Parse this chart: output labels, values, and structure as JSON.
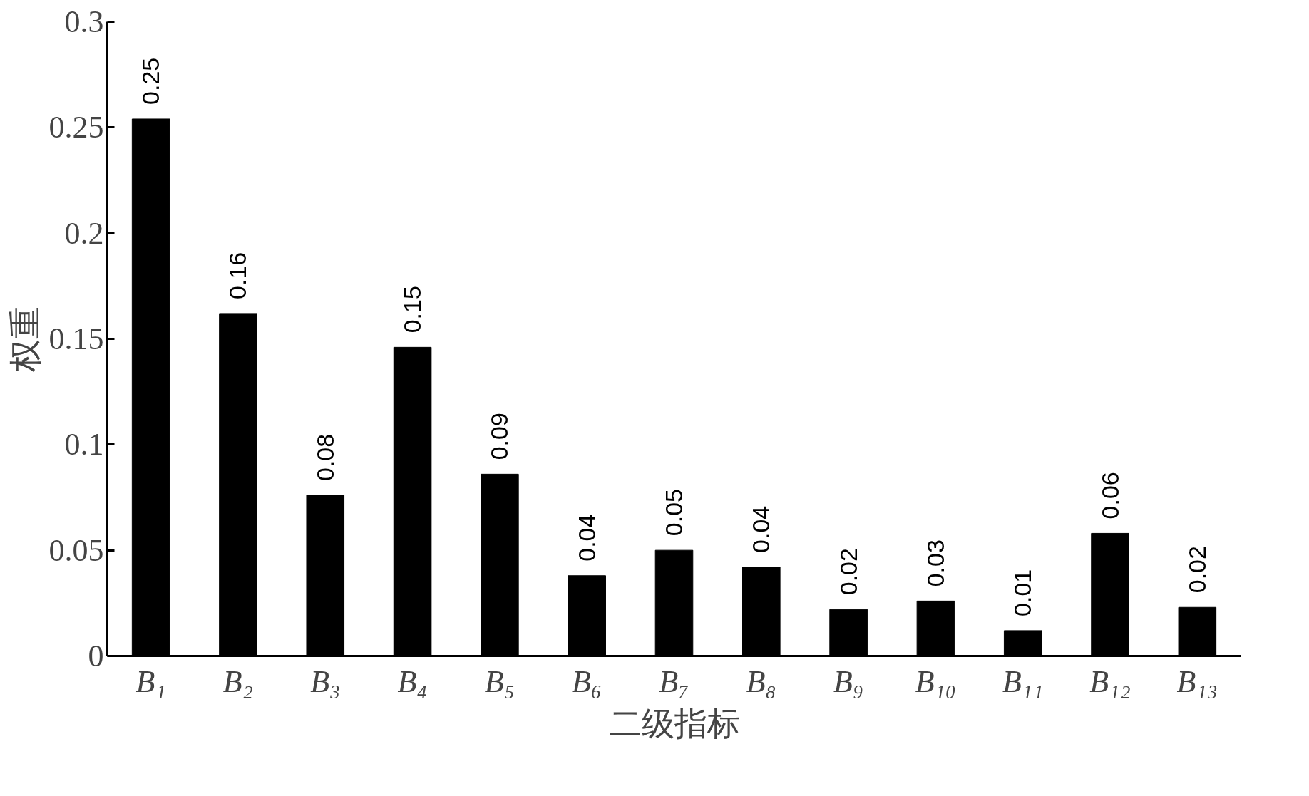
{
  "chart_data": {
    "type": "bar",
    "xlabel": "二级指标",
    "ylabel": "权重",
    "categories": [
      "B₁",
      "B₂",
      "B₃",
      "B₄",
      "B₅",
      "B₆",
      "B₇",
      "B₈",
      "B₉",
      "B₁₀",
      "B₁₁",
      "B₁₂",
      "B₁₃"
    ],
    "values": [
      0.254,
      0.162,
      0.076,
      0.146,
      0.086,
      0.038,
      0.05,
      0.042,
      0.022,
      0.026,
      0.012,
      0.058,
      0.023
    ],
    "value_labels": [
      "0.25",
      "0.16",
      "0.08",
      "0.15",
      "0.09",
      "0.04",
      "0.05",
      "0.04",
      "0.02",
      "0.03",
      "0.01",
      "0.06",
      "0.02"
    ],
    "color": "#000000",
    "ylim": [
      0,
      0.3
    ],
    "yticks": [
      0,
      0.05,
      0.1,
      0.15,
      0.2,
      0.25,
      0.3
    ],
    "grid": false
  }
}
